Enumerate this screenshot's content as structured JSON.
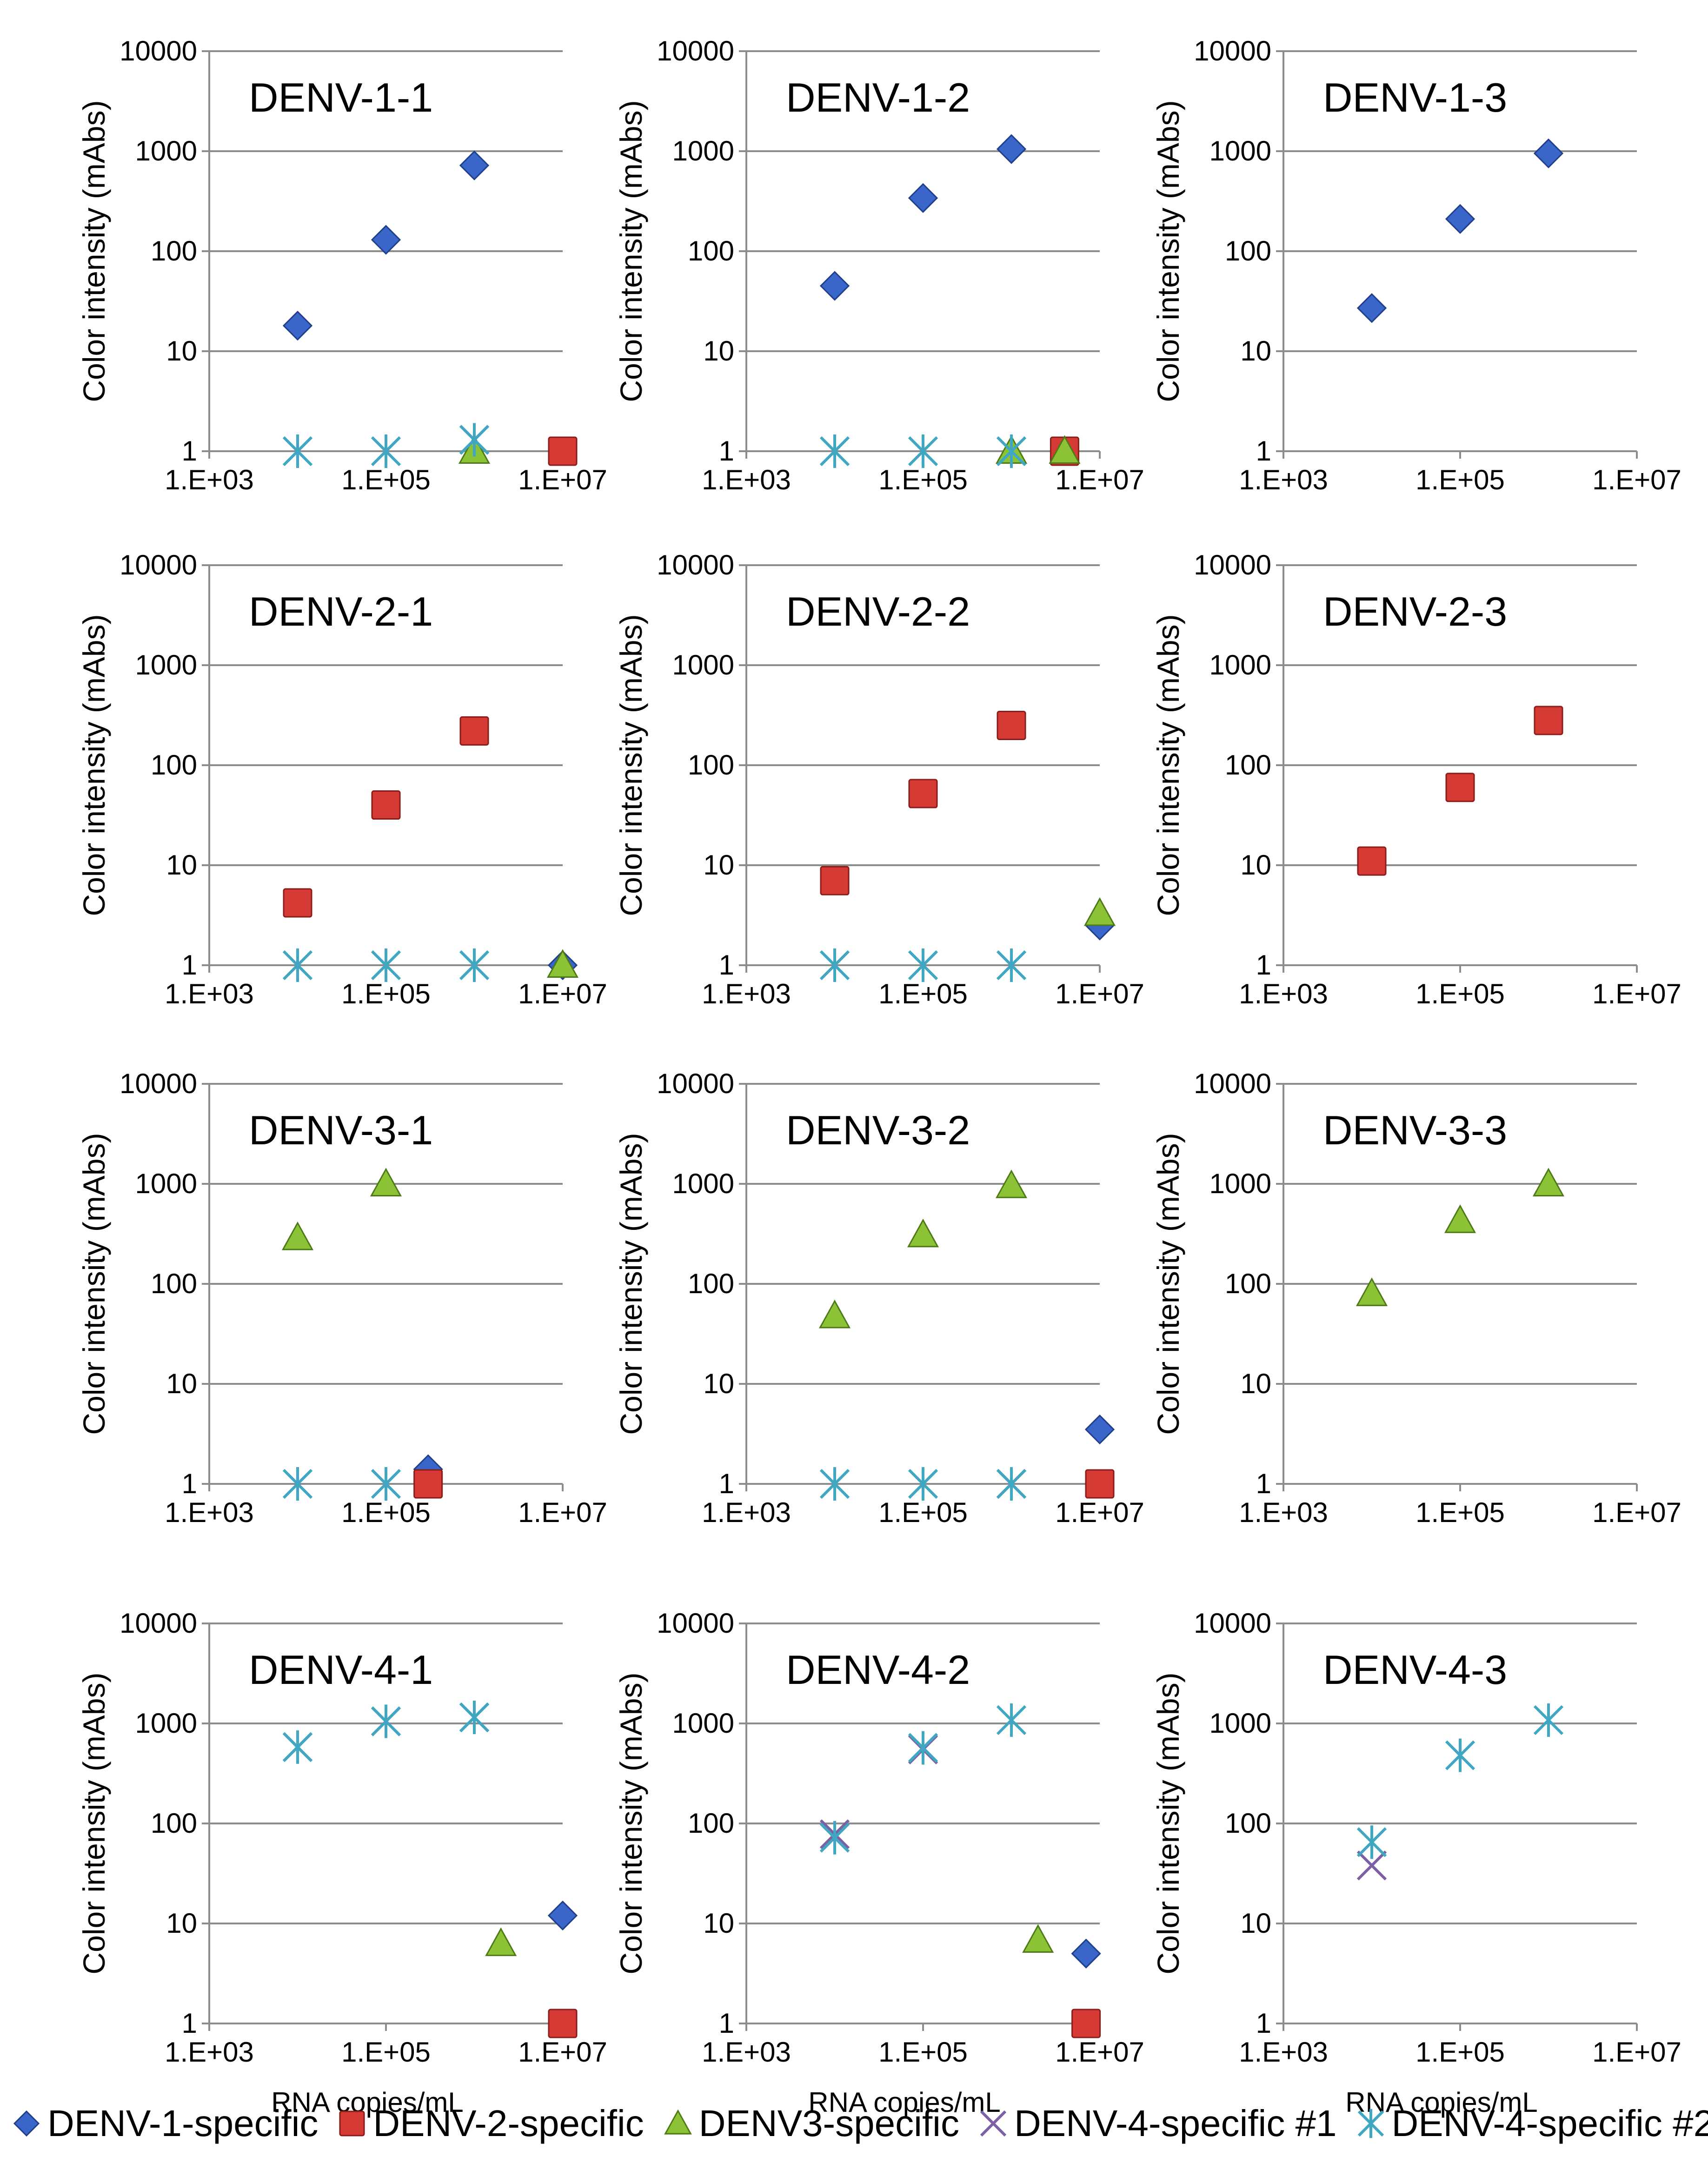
{
  "colors": {
    "denv1": "#3a66c9",
    "denv2": "#d63a34",
    "denv3": "#8cc236",
    "denv4_1": "#7d5fa3",
    "denv4_2": "#3fa7c2",
    "grid": "#8c8c8c",
    "axis": "#8c8c8c"
  },
  "legend": {
    "items": [
      {
        "key": "denv1",
        "label": "DENV-1-specific",
        "marker": "diamond-icon"
      },
      {
        "key": "denv2",
        "label": "DENV-2-specific",
        "marker": "square-icon"
      },
      {
        "key": "denv3",
        "label": "DENV3-specific",
        "marker": "triangle-icon"
      },
      {
        "key": "denv4_1",
        "label": "DENV-4-specific #1",
        "marker": "cross-icon"
      },
      {
        "key": "denv4_2",
        "label": "DENV-4-specific #2",
        "marker": "asterisk-icon"
      }
    ]
  },
  "chart_data": [
    {
      "type": "scatter",
      "title": "DENV-1-1",
      "ylabel": "Color intensity (mAbs)",
      "xlabel": "",
      "xscale": "log",
      "yscale": "log",
      "xlim": [
        1000,
        10000000
      ],
      "ylim": [
        1,
        10000
      ],
      "xticks": [
        "1.E+03",
        "1.E+05",
        "1.E+07"
      ],
      "yticks": [
        "1",
        "10",
        "100",
        "1000",
        "10000"
      ],
      "series": [
        {
          "name": "DENV-1-specific",
          "key": "denv1",
          "points": [
            [
              10000,
              18
            ],
            [
              100000,
              130
            ],
            [
              1000000,
              720
            ]
          ]
        },
        {
          "name": "DENV-2-specific",
          "key": "denv2",
          "points": [
            [
              10000000,
              1
            ]
          ]
        },
        {
          "name": "DENV3-specific",
          "key": "denv3",
          "points": [
            [
              1000000,
              1
            ]
          ]
        },
        {
          "name": "DENV-4-specific #1",
          "key": "denv4_1",
          "points": [
            [
              1000000,
              1.3
            ]
          ]
        },
        {
          "name": "DENV-4-specific #2",
          "key": "denv4_2",
          "points": [
            [
              10000,
              1
            ],
            [
              100000,
              1
            ],
            [
              1000000,
              1.3
            ]
          ]
        }
      ]
    },
    {
      "type": "scatter",
      "title": "DENV-1-2",
      "ylabel": "Color intensity (mAbs)",
      "xlabel": "",
      "xscale": "log",
      "yscale": "log",
      "xlim": [
        1000,
        10000000
      ],
      "ylim": [
        1,
        10000
      ],
      "xticks": [
        "1.E+03",
        "1.E+05",
        "1.E+07"
      ],
      "yticks": [
        "1",
        "10",
        "100",
        "1000",
        "10000"
      ],
      "series": [
        {
          "name": "DENV-1-specific",
          "key": "denv1",
          "points": [
            [
              10000,
              45
            ],
            [
              100000,
              340
            ],
            [
              1000000,
              1050
            ]
          ]
        },
        {
          "name": "DENV-2-specific",
          "key": "denv2",
          "points": [
            [
              4000000,
              1
            ]
          ]
        },
        {
          "name": "DENV3-specific",
          "key": "denv3",
          "points": [
            [
              1000000,
              1
            ],
            [
              4000000,
              1
            ]
          ]
        },
        {
          "name": "DENV-4-specific #1",
          "key": "denv4_1",
          "points": []
        },
        {
          "name": "DENV-4-specific #2",
          "key": "denv4_2",
          "points": [
            [
              10000,
              1
            ],
            [
              100000,
              1
            ],
            [
              1000000,
              1
            ]
          ]
        }
      ]
    },
    {
      "type": "scatter",
      "title": "DENV-1-3",
      "ylabel": "Color intensity (mAbs)",
      "xlabel": "",
      "xscale": "log",
      "yscale": "log",
      "xlim": [
        1000,
        10000000
      ],
      "ylim": [
        1,
        10000
      ],
      "xticks": [
        "1.E+03",
        "1.E+05",
        "1.E+07"
      ],
      "yticks": [
        "1",
        "10",
        "100",
        "1000",
        "10000"
      ],
      "series": [
        {
          "name": "DENV-1-specific",
          "key": "denv1",
          "points": [
            [
              10000,
              27
            ],
            [
              100000,
              210
            ],
            [
              1000000,
              950
            ]
          ]
        }
      ]
    },
    {
      "type": "scatter",
      "title": "DENV-2-1",
      "ylabel": "Color intensity (mAbs)",
      "xlabel": "",
      "xscale": "log",
      "yscale": "log",
      "xlim": [
        1000,
        10000000
      ],
      "ylim": [
        1,
        10000
      ],
      "xticks": [
        "1.E+03",
        "1.E+05",
        "1.E+07"
      ],
      "yticks": [
        "1",
        "10",
        "100",
        "1000",
        "10000"
      ],
      "series": [
        {
          "name": "DENV-1-specific",
          "key": "denv1",
          "points": [
            [
              10000000,
              1
            ]
          ]
        },
        {
          "name": "DENV-2-specific",
          "key": "denv2",
          "points": [
            [
              10000,
              4.2
            ],
            [
              100000,
              40
            ],
            [
              1000000,
              220
            ]
          ]
        },
        {
          "name": "DENV3-specific",
          "key": "denv3",
          "points": [
            [
              10000000,
              1
            ]
          ]
        },
        {
          "name": "DENV-4-specific #2",
          "key": "denv4_2",
          "points": [
            [
              10000,
              1
            ],
            [
              100000,
              1
            ],
            [
              1000000,
              1
            ]
          ]
        }
      ]
    },
    {
      "type": "scatter",
      "title": "DENV-2-2",
      "ylabel": "Color intensity (mAbs)",
      "xlabel": "",
      "xscale": "log",
      "yscale": "log",
      "xlim": [
        1000,
        10000000
      ],
      "ylim": [
        1,
        10000
      ],
      "xticks": [
        "1.E+03",
        "1.E+05",
        "1.E+07"
      ],
      "yticks": [
        "1",
        "10",
        "100",
        "1000",
        "10000"
      ],
      "series": [
        {
          "name": "DENV-1-specific",
          "key": "denv1",
          "points": [
            [
              10000000,
              2.5
            ]
          ]
        },
        {
          "name": "DENV-2-specific",
          "key": "denv2",
          "points": [
            [
              10000,
              7
            ],
            [
              100000,
              52
            ],
            [
              1000000,
              250
            ]
          ]
        },
        {
          "name": "DENV3-specific",
          "key": "denv3",
          "points": [
            [
              10000000,
              3.3
            ]
          ]
        },
        {
          "name": "DENV-4-specific #2",
          "key": "denv4_2",
          "points": [
            [
              10000,
              1
            ],
            [
              100000,
              1
            ],
            [
              1000000,
              1
            ]
          ]
        }
      ]
    },
    {
      "type": "scatter",
      "title": "DENV-2-3",
      "ylabel": "Color intensity (mAbs)",
      "xlabel": "",
      "xscale": "log",
      "yscale": "log",
      "xlim": [
        1000,
        10000000
      ],
      "ylim": [
        1,
        10000
      ],
      "xticks": [
        "1.E+03",
        "1.E+05",
        "1.E+07"
      ],
      "yticks": [
        "1",
        "10",
        "100",
        "1000",
        "10000"
      ],
      "series": [
        {
          "name": "DENV-2-specific",
          "key": "denv2",
          "points": [
            [
              10000,
              11
            ],
            [
              100000,
              60
            ],
            [
              1000000,
              280
            ]
          ]
        }
      ]
    },
    {
      "type": "scatter",
      "title": "DENV-3-1",
      "ylabel": "Color intensity (mAbs)",
      "xlabel": "",
      "xscale": "log",
      "yscale": "log",
      "xlim": [
        1000,
        10000000
      ],
      "ylim": [
        1,
        10000
      ],
      "xticks": [
        "1.E+03",
        "1.E+05",
        "1.E+07"
      ],
      "yticks": [
        "1",
        "10",
        "100",
        "1000",
        "10000"
      ],
      "series": [
        {
          "name": "DENV-1-specific",
          "key": "denv1",
          "points": [
            [
              300000,
              1.4
            ]
          ]
        },
        {
          "name": "DENV-2-specific",
          "key": "denv2",
          "points": [
            [
              300000,
              1
            ]
          ]
        },
        {
          "name": "DENV3-specific",
          "key": "denv3",
          "points": [
            [
              10000,
              290
            ],
            [
              100000,
              1000
            ]
          ]
        },
        {
          "name": "DENV-4-specific #2",
          "key": "denv4_2",
          "points": [
            [
              10000,
              1
            ],
            [
              100000,
              1
            ]
          ]
        }
      ]
    },
    {
      "type": "scatter",
      "title": "DENV-3-2",
      "ylabel": "Color intensity (mAbs)",
      "xlabel": "",
      "xscale": "log",
      "yscale": "log",
      "xlim": [
        1000,
        10000000
      ],
      "ylim": [
        1,
        10000
      ],
      "xticks": [
        "1.E+03",
        "1.E+05",
        "1.E+07"
      ],
      "yticks": [
        "1",
        "10",
        "100",
        "1000",
        "10000"
      ],
      "series": [
        {
          "name": "DENV-1-specific",
          "key": "denv1",
          "points": [
            [
              10000000,
              3.5
            ]
          ]
        },
        {
          "name": "DENV-2-specific",
          "key": "denv2",
          "points": [
            [
              10000000,
              1
            ]
          ]
        },
        {
          "name": "DENV3-specific",
          "key": "denv3",
          "points": [
            [
              10000,
              48
            ],
            [
              100000,
              310
            ],
            [
              1000000,
              960
            ]
          ]
        },
        {
          "name": "DENV-4-specific #1",
          "key": "denv4_1",
          "points": [
            [
              1000000,
              1
            ]
          ]
        },
        {
          "name": "DENV-4-specific #2",
          "key": "denv4_2",
          "points": [
            [
              10000,
              1
            ],
            [
              100000,
              1
            ],
            [
              1000000,
              1
            ]
          ]
        }
      ]
    },
    {
      "type": "scatter",
      "title": "DENV-3-3",
      "ylabel": "Color intensity (mAbs)",
      "xlabel": "",
      "xscale": "log",
      "yscale": "log",
      "xlim": [
        1000,
        10000000
      ],
      "ylim": [
        1,
        10000
      ],
      "xticks": [
        "1.E+03",
        "1.E+05",
        "1.E+07"
      ],
      "yticks": [
        "1",
        "10",
        "100",
        "1000",
        "10000"
      ],
      "series": [
        {
          "name": "DENV3-specific",
          "key": "denv3",
          "points": [
            [
              10000,
              80
            ],
            [
              100000,
              430
            ],
            [
              1000000,
              1000
            ]
          ]
        }
      ]
    },
    {
      "type": "scatter",
      "title": "DENV-4-1",
      "ylabel": "Color intensity (mAbs)",
      "xlabel": "RNA copies/mL",
      "xscale": "log",
      "yscale": "log",
      "xlim": [
        1000,
        10000000
      ],
      "ylim": [
        1,
        10000
      ],
      "xticks": [
        "1.E+03",
        "1.E+05",
        "1.E+07"
      ],
      "yticks": [
        "1",
        "10",
        "100",
        "1000",
        "10000"
      ],
      "series": [
        {
          "name": "DENV-1-specific",
          "key": "denv1",
          "points": [
            [
              10000000,
              12
            ]
          ]
        },
        {
          "name": "DENV-2-specific",
          "key": "denv2",
          "points": [
            [
              10000000,
              1
            ]
          ]
        },
        {
          "name": "DENV3-specific",
          "key": "denv3",
          "points": [
            [
              2000000,
              6.3
            ]
          ]
        },
        {
          "name": "DENV-4-specific #1",
          "key": "denv4_1",
          "points": [
            [
              10000,
              580
            ],
            [
              100000,
              1050
            ],
            [
              1000000,
              1150
            ]
          ]
        },
        {
          "name": "DENV-4-specific #2",
          "key": "denv4_2",
          "points": [
            [
              10000,
              580
            ],
            [
              100000,
              1050
            ],
            [
              1000000,
              1150
            ]
          ]
        }
      ]
    },
    {
      "type": "scatter",
      "title": "DENV-4-2",
      "ylabel": "Color intensity (mAbs)",
      "xlabel": "RNA copies/mL",
      "xscale": "log",
      "yscale": "log",
      "xlim": [
        1000,
        10000000
      ],
      "ylim": [
        1,
        10000
      ],
      "xticks": [
        "1.E+03",
        "1.E+05",
        "1.E+07"
      ],
      "yticks": [
        "1",
        "10",
        "100",
        "1000",
        "10000"
      ],
      "series": [
        {
          "name": "DENV-1-specific",
          "key": "denv1",
          "points": [
            [
              7000000,
              5
            ]
          ]
        },
        {
          "name": "DENV-2-specific",
          "key": "denv2",
          "points": [
            [
              7000000,
              1
            ]
          ]
        },
        {
          "name": "DENV3-specific",
          "key": "denv3",
          "points": [
            [
              2000000,
              6.8
            ]
          ]
        },
        {
          "name": "DENV-4-specific #1",
          "key": "denv4_1",
          "points": [
            [
              10000,
              78
            ],
            [
              100000,
              550
            ]
          ]
        },
        {
          "name": "DENV-4-specific #2",
          "key": "denv4_2",
          "points": [
            [
              10000,
              72
            ],
            [
              100000,
              570
            ],
            [
              1000000,
              1080
            ]
          ]
        }
      ]
    },
    {
      "type": "scatter",
      "title": "DENV-4-3",
      "ylabel": "Color intensity (mAbs)",
      "xlabel": "RNA copies/mL",
      "xscale": "log",
      "yscale": "log",
      "xlim": [
        1000,
        10000000
      ],
      "ylim": [
        1,
        10000
      ],
      "xticks": [
        "1.E+03",
        "1.E+05",
        "1.E+07"
      ],
      "yticks": [
        "1",
        "10",
        "100",
        "1000",
        "10000"
      ],
      "series": [
        {
          "name": "DENV-4-specific #1",
          "key": "denv4_1",
          "points": [
            [
              10000,
              38
            ]
          ]
        },
        {
          "name": "DENV-4-specific #2",
          "key": "denv4_2",
          "points": [
            [
              10000,
              65
            ],
            [
              100000,
              480
            ],
            [
              1000000,
              1080
            ]
          ]
        }
      ]
    }
  ]
}
